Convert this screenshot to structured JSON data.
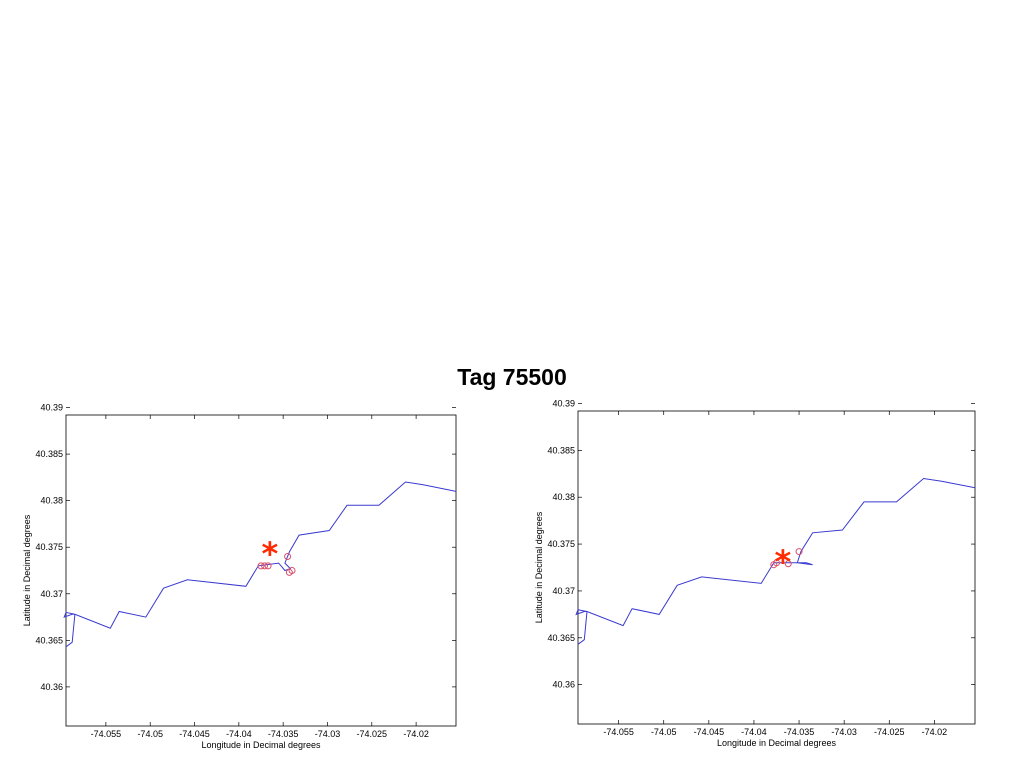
{
  "slide": {
    "title": "Tag 75500"
  },
  "chart_data": [
    {
      "type": "line",
      "xlabel": "Longitude in Decimal degrees",
      "ylabel": "Latitude in Decimal degrees",
      "xlim": [
        -74.0595,
        -74.0155
      ],
      "ylim": [
        40.3558,
        40.3892
      ],
      "xticks": [
        -74.055,
        -74.05,
        -74.045,
        -74.04,
        -74.035,
        -74.03,
        -74.025,
        -74.02
      ],
      "yticks": [
        40.36,
        40.365,
        40.37,
        40.375,
        40.38,
        40.385,
        40.39
      ],
      "xtick_labels": [
        "-74.055",
        "-74.05",
        "-74.045",
        "-74.04",
        "-74.035",
        "-74.03",
        "-74.025",
        "-74.02"
      ],
      "ytick_labels": [
        "40.36",
        "40.365",
        "40.37",
        "40.375",
        "40.38",
        "40.385",
        "40.39"
      ],
      "grid": false,
      "line_color": "#3a3ad0",
      "marker_color": "#d9506a",
      "star_color": "#ff2a00",
      "series": [
        {
          "x": [
            -74.0595,
            -74.0588,
            -74.0585,
            -74.0595,
            -74.0597,
            -74.0588,
            -74.0585,
            -74.0545,
            -74.0535,
            -74.0505,
            -74.0485,
            -74.0458,
            -74.0392,
            -74.0378,
            -74.0355,
            -74.0348,
            -74.0342,
            -74.0348,
            -74.0343,
            -74.0332,
            -74.0298,
            -74.0278,
            -74.0242,
            -74.0212,
            -74.0192,
            -74.0155
          ],
          "y": [
            40.3643,
            40.3648,
            40.3678,
            40.368,
            40.3675,
            40.3678,
            40.3678,
            40.3663,
            40.3681,
            40.3675,
            40.3706,
            40.3715,
            40.3708,
            40.373,
            40.3733,
            40.3725,
            40.3727,
            40.3733,
            40.3745,
            40.3763,
            40.3768,
            40.3795,
            40.3795,
            40.382,
            40.3817,
            40.381
          ]
        }
      ],
      "markers": [
        {
          "x": -74.0375,
          "y": 40.373
        },
        {
          "x": -74.0371,
          "y": 40.373
        },
        {
          "x": -74.0367,
          "y": 40.373
        },
        {
          "x": -74.0345,
          "y": 40.374
        },
        {
          "x": -74.0343,
          "y": 40.3723
        },
        {
          "x": -74.034,
          "y": 40.3725
        }
      ],
      "star": {
        "x": -74.0365,
        "y": 40.3745
      }
    },
    {
      "type": "line",
      "xlabel": "Longitude in Decimal degrees",
      "ylabel": "Latitude in Decimal degrees",
      "xlim": [
        -74.0595,
        -74.0155
      ],
      "ylim": [
        40.3558,
        40.3892
      ],
      "xticks": [
        -74.055,
        -74.05,
        -74.045,
        -74.04,
        -74.035,
        -74.03,
        -74.025,
        -74.02
      ],
      "yticks": [
        40.36,
        40.365,
        40.37,
        40.375,
        40.38,
        40.385,
        40.39
      ],
      "xtick_labels": [
        "-74.055",
        "-74.05",
        "-74.045",
        "-74.04",
        "-74.035",
        "-74.03",
        "-74.025",
        "-74.02"
      ],
      "ytick_labels": [
        "40.36",
        "40.365",
        "40.37",
        "40.375",
        "40.38",
        "40.385",
        "40.39"
      ],
      "grid": false,
      "line_color": "#3a3ad0",
      "marker_color": "#d9506a",
      "star_color": "#ff2a00",
      "series": [
        {
          "x": [
            -74.0595,
            -74.0588,
            -74.0585,
            -74.0595,
            -74.0597,
            -74.0588,
            -74.0585,
            -74.0545,
            -74.0535,
            -74.0505,
            -74.0485,
            -74.0458,
            -74.0392,
            -74.0378,
            -74.0352,
            -74.0335,
            -74.0342,
            -74.0352,
            -74.0348,
            -74.0335,
            -74.0302,
            -74.0278,
            -74.0242,
            -74.0212,
            -74.0192,
            -74.0155
          ],
          "y": [
            40.3643,
            40.3648,
            40.3678,
            40.368,
            40.3675,
            40.3678,
            40.3678,
            40.3663,
            40.3681,
            40.3675,
            40.3706,
            40.3715,
            40.3708,
            40.373,
            40.373,
            40.3728,
            40.373,
            40.373,
            40.3742,
            40.3762,
            40.3765,
            40.3795,
            40.3795,
            40.382,
            40.3817,
            40.381
          ]
        }
      ],
      "markers": [
        {
          "x": -74.0378,
          "y": 40.3728
        },
        {
          "x": -74.0375,
          "y": 40.373
        },
        {
          "x": -74.0362,
          "y": 40.3729
        },
        {
          "x": -74.035,
          "y": 40.3742
        }
      ],
      "star": {
        "x": -74.0368,
        "y": 40.3733
      }
    }
  ]
}
